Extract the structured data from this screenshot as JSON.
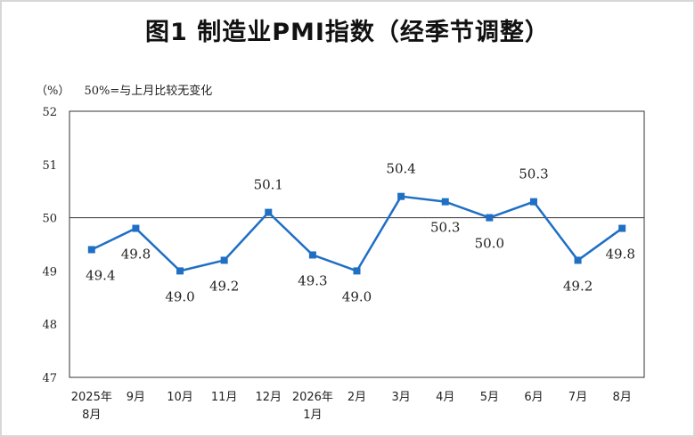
{
  "title": "图1 制造业PMI指数（经季节调整）",
  "unit": "（%）",
  "note": "50%=与上月比较无变化",
  "chart_data": {
    "type": "line",
    "categories": [
      [
        "2025年",
        "8月"
      ],
      [
        "9月"
      ],
      [
        "10月"
      ],
      [
        "11月"
      ],
      [
        "12月"
      ],
      [
        "2026年",
        "1月"
      ],
      [
        "2月"
      ],
      [
        "3月"
      ],
      [
        "4月"
      ],
      [
        "5月"
      ],
      [
        "6月"
      ],
      [
        "7月"
      ],
      [
        "8月"
      ]
    ],
    "values": [
      49.4,
      49.8,
      49.0,
      49.2,
      50.1,
      49.3,
      49.0,
      50.4,
      50.3,
      50.0,
      50.3,
      49.2,
      49.8
    ],
    "labels": [
      "49.4",
      "49.8",
      "49.0",
      "49.2",
      "50.1",
      "49.3",
      "49.0",
      "50.4",
      "50.3",
      "50.0",
      "50.3",
      "49.2",
      "49.8"
    ],
    "ylim": [
      47,
      52
    ],
    "yticks": [
      "47",
      "48",
      "49",
      "50",
      "51",
      "52"
    ],
    "reference_line": 50,
    "color": "#1f6fc5"
  }
}
